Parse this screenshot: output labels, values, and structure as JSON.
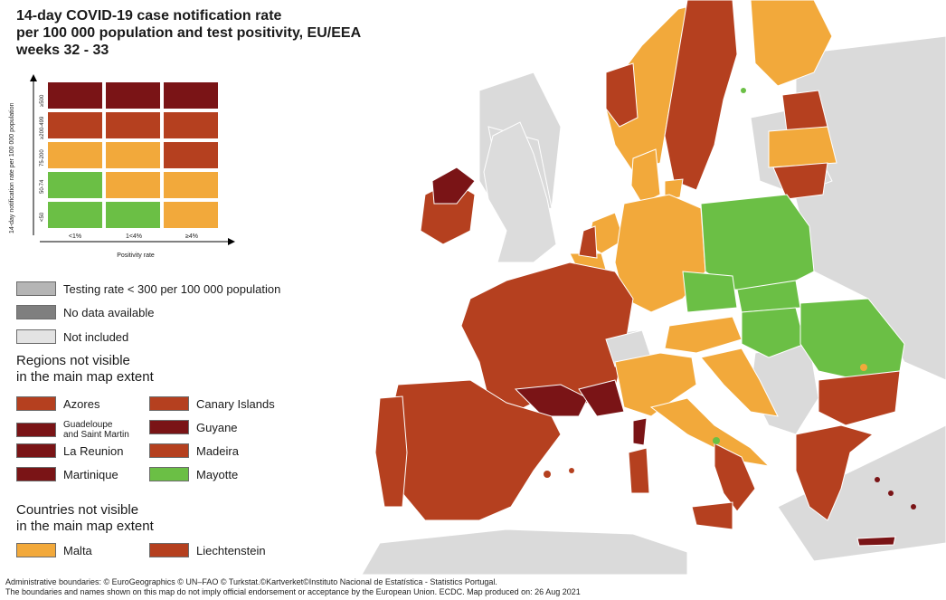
{
  "title": {
    "line1": "14-day COVID-19 case notification rate",
    "line2": "per 100 000 population and test positivity, EU/EEA",
    "line3": "weeks 32 - 33"
  },
  "colors": {
    "dark_red": "#7a1416",
    "red": "#b5401f",
    "orange": "#f2a93b",
    "green": "#6bbf45",
    "grey_testing": "#b5b5b5",
    "grey_nodata": "#7f7f7f",
    "not_included": "#e3e3e3",
    "sea": "#ffffff",
    "land_other": "#d9d9d9"
  },
  "matrix": {
    "y_axis_label": "14-day notification rate per 100 000 population",
    "x_axis_label": "Positivity rate",
    "y_ticks": [
      "≥500",
      "≥200-499",
      "75-200",
      "50-74",
      "<50"
    ],
    "x_ticks": [
      "<1%",
      "1<4%",
      "≥4%"
    ],
    "cells": [
      [
        "dark_red",
        "dark_red",
        "dark_red"
      ],
      [
        "red",
        "red",
        "red"
      ],
      [
        "orange",
        "orange",
        "red"
      ],
      [
        "green",
        "orange",
        "orange"
      ],
      [
        "green",
        "green",
        "orange"
      ]
    ]
  },
  "legend": {
    "testing": "Testing rate < 300 per 100 000 population",
    "no_data": "No data available",
    "not_included": "Not included"
  },
  "regions": {
    "heading_line1": "Regions not visible",
    "heading_line2": "in the main map extent",
    "items": [
      {
        "label": "Azores",
        "color": "red"
      },
      {
        "label": "Canary Islands",
        "color": "red"
      },
      {
        "label": "Guadeloupe\nand Saint Martin",
        "color": "dark_red"
      },
      {
        "label": "Guyane",
        "color": "dark_red"
      },
      {
        "label": "La Reunion",
        "color": "dark_red"
      },
      {
        "label": "Madeira",
        "color": "red"
      },
      {
        "label": "Martinique",
        "color": "dark_red"
      },
      {
        "label": "Mayotte",
        "color": "green"
      }
    ]
  },
  "countries": {
    "heading_line1": "Countries not visible",
    "heading_line2": "in the main map extent",
    "items": [
      {
        "label": "Malta",
        "color": "orange"
      },
      {
        "label": "Liechtenstein",
        "color": "red"
      }
    ]
  },
  "footer": {
    "line1": "Administrative boundaries: © EuroGeographics © UN–FAO © Turkstat.©Kartverket©Instituto Nacional de Estatística - Statistics Portugal.",
    "line2": "The boundaries and names shown on this map do not imply official endorsement or acceptance by the European Union. ECDC. Map produced on: 26 Aug 2021"
  }
}
